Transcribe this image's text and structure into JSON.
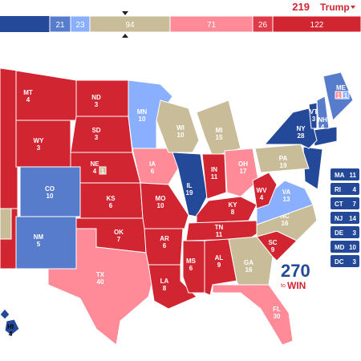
{
  "header": {
    "total": "219",
    "candidate": "Trump"
  },
  "bar": [
    {
      "text": "21",
      "color": "#577ccc"
    },
    {
      "text": "23",
      "color": "#8aafff"
    },
    {
      "text": "94",
      "color": "#c9bc98"
    },
    {
      "text": "71",
      "color": "#ff8b98"
    },
    {
      "text": "26",
      "color": "#e03b48"
    },
    {
      "text": "122",
      "color": "#d22532"
    }
  ],
  "states": [
    {
      "abbr": "MT",
      "ev": "4",
      "color": "#d22532"
    },
    {
      "abbr": "WY",
      "ev": "3",
      "color": "#d22532"
    },
    {
      "abbr": "CO",
      "ev": "10",
      "color": "#577ccc"
    },
    {
      "abbr": "NM",
      "ev": "5",
      "color": "#577ccc"
    },
    {
      "abbr": "ND",
      "ev": "3",
      "color": "#d22532"
    },
    {
      "abbr": "SD",
      "ev": "3",
      "color": "#d22532"
    },
    {
      "abbr": "NE",
      "ev": "4",
      "color": "#d22532",
      "split": "1",
      "split_color": "#c9bc98"
    },
    {
      "abbr": "KS",
      "ev": "6",
      "color": "#d22532"
    },
    {
      "abbr": "OK",
      "ev": "7",
      "color": "#d22532"
    },
    {
      "abbr": "TX",
      "ev": "40",
      "color": "#ff8b98"
    },
    {
      "abbr": "MN",
      "ev": "10",
      "color": "#8aafff"
    },
    {
      "abbr": "IA",
      "ev": "6",
      "color": "#ff8b98"
    },
    {
      "abbr": "MO",
      "ev": "10",
      "color": "#d22532"
    },
    {
      "abbr": "AR",
      "ev": "6",
      "color": "#d22532"
    },
    {
      "abbr": "LA",
      "ev": "8",
      "color": "#d22532"
    },
    {
      "abbr": "WI",
      "ev": "10",
      "color": "#c9bc98"
    },
    {
      "abbr": "MI",
      "ev": "15",
      "color": "#c9bc98"
    },
    {
      "abbr": "IL",
      "ev": "19",
      "color": "#244999"
    },
    {
      "abbr": "IN",
      "ev": "11",
      "color": "#d22532"
    },
    {
      "abbr": "OH",
      "ev": "17",
      "color": "#ff8b98"
    },
    {
      "abbr": "KY",
      "ev": "8",
      "color": "#d22532"
    },
    {
      "abbr": "TN",
      "ev": "11",
      "color": "#d22532"
    },
    {
      "abbr": "MS",
      "ev": "6",
      "color": "#d22532"
    },
    {
      "abbr": "AL",
      "ev": "9",
      "color": "#d22532"
    },
    {
      "abbr": "GA",
      "ev": "16",
      "color": "#c9bc98"
    },
    {
      "abbr": "FL",
      "ev": "30",
      "color": "#ff8b98"
    },
    {
      "abbr": "SC",
      "ev": "9",
      "color": "#d22532"
    },
    {
      "abbr": "NC",
      "ev": "16",
      "color": "#c9bc98"
    },
    {
      "abbr": "VA",
      "ev": "13",
      "color": "#8aafff"
    },
    {
      "abbr": "WV",
      "ev": "4",
      "color": "#d22532"
    },
    {
      "abbr": "PA",
      "ev": "19",
      "color": "#c9bc98"
    },
    {
      "abbr": "NY",
      "ev": "28",
      "color": "#244999"
    },
    {
      "abbr": "VT",
      "ev": "3",
      "color": "#244999"
    },
    {
      "abbr": "NH",
      "ev": "4",
      "color": "#577ccc"
    },
    {
      "abbr": "ME",
      "ev": "2",
      "color": "#577ccc"
    },
    {
      "abbr": "HI",
      "ev": "4",
      "color": "#244999"
    }
  ],
  "me_districts": [
    {
      "text": "1",
      "color": "#ff8b98"
    },
    {
      "text": "1",
      "color": "#8aafff"
    }
  ],
  "small_states": [
    {
      "abbr": "MA",
      "ev": "11"
    },
    {
      "abbr": "RI",
      "ev": "4"
    },
    {
      "abbr": "CT",
      "ev": "7"
    },
    {
      "abbr": "NJ",
      "ev": "14"
    },
    {
      "abbr": "DE",
      "ev": "3"
    },
    {
      "abbr": "MD",
      "ev": "10"
    },
    {
      "abbr": "DC",
      "ev": "3"
    }
  ],
  "logo": {
    "number": "270",
    "to": "to",
    "win": "WIN"
  }
}
